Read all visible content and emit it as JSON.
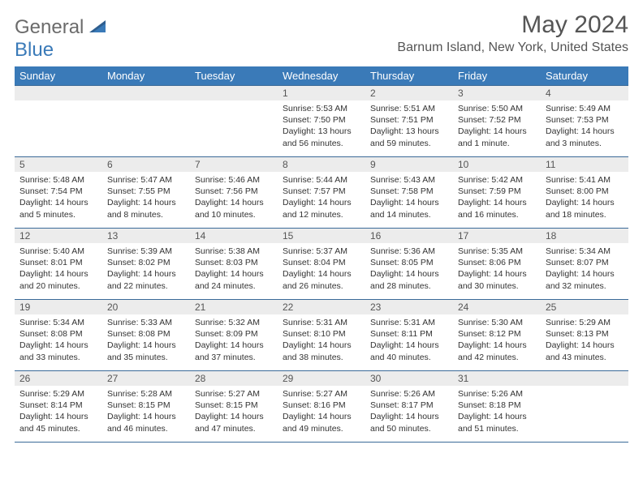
{
  "brand": {
    "name1": "General",
    "name2": "Blue"
  },
  "header": {
    "title": "May 2024",
    "location": "Barnum Island, New York, United States"
  },
  "style": {
    "header_bg": "#3a7ab8",
    "header_text": "#ffffff",
    "daynum_bg": "#ececec",
    "border_color": "#3a6a98",
    "title_color": "#555555",
    "body_text": "#333333",
    "brand_gray": "#6b6b6b",
    "brand_blue": "#3a7ab8",
    "font_family": "Arial",
    "title_fontsize": 30,
    "location_fontsize": 16,
    "th_fontsize": 13,
    "cell_fontsize": 10.5
  },
  "weekdays": [
    "Sunday",
    "Monday",
    "Tuesday",
    "Wednesday",
    "Thursday",
    "Friday",
    "Saturday"
  ],
  "weeks": [
    [
      null,
      null,
      null,
      {
        "n": "1",
        "sr": "Sunrise: 5:53 AM",
        "ss": "Sunset: 7:50 PM",
        "dl": "Daylight: 13 hours and 56 minutes."
      },
      {
        "n": "2",
        "sr": "Sunrise: 5:51 AM",
        "ss": "Sunset: 7:51 PM",
        "dl": "Daylight: 13 hours and 59 minutes."
      },
      {
        "n": "3",
        "sr": "Sunrise: 5:50 AM",
        "ss": "Sunset: 7:52 PM",
        "dl": "Daylight: 14 hours and 1 minute."
      },
      {
        "n": "4",
        "sr": "Sunrise: 5:49 AM",
        "ss": "Sunset: 7:53 PM",
        "dl": "Daylight: 14 hours and 3 minutes."
      }
    ],
    [
      {
        "n": "5",
        "sr": "Sunrise: 5:48 AM",
        "ss": "Sunset: 7:54 PM",
        "dl": "Daylight: 14 hours and 5 minutes."
      },
      {
        "n": "6",
        "sr": "Sunrise: 5:47 AM",
        "ss": "Sunset: 7:55 PM",
        "dl": "Daylight: 14 hours and 8 minutes."
      },
      {
        "n": "7",
        "sr": "Sunrise: 5:46 AM",
        "ss": "Sunset: 7:56 PM",
        "dl": "Daylight: 14 hours and 10 minutes."
      },
      {
        "n": "8",
        "sr": "Sunrise: 5:44 AM",
        "ss": "Sunset: 7:57 PM",
        "dl": "Daylight: 14 hours and 12 minutes."
      },
      {
        "n": "9",
        "sr": "Sunrise: 5:43 AM",
        "ss": "Sunset: 7:58 PM",
        "dl": "Daylight: 14 hours and 14 minutes."
      },
      {
        "n": "10",
        "sr": "Sunrise: 5:42 AM",
        "ss": "Sunset: 7:59 PM",
        "dl": "Daylight: 14 hours and 16 minutes."
      },
      {
        "n": "11",
        "sr": "Sunrise: 5:41 AM",
        "ss": "Sunset: 8:00 PM",
        "dl": "Daylight: 14 hours and 18 minutes."
      }
    ],
    [
      {
        "n": "12",
        "sr": "Sunrise: 5:40 AM",
        "ss": "Sunset: 8:01 PM",
        "dl": "Daylight: 14 hours and 20 minutes."
      },
      {
        "n": "13",
        "sr": "Sunrise: 5:39 AM",
        "ss": "Sunset: 8:02 PM",
        "dl": "Daylight: 14 hours and 22 minutes."
      },
      {
        "n": "14",
        "sr": "Sunrise: 5:38 AM",
        "ss": "Sunset: 8:03 PM",
        "dl": "Daylight: 14 hours and 24 minutes."
      },
      {
        "n": "15",
        "sr": "Sunrise: 5:37 AM",
        "ss": "Sunset: 8:04 PM",
        "dl": "Daylight: 14 hours and 26 minutes."
      },
      {
        "n": "16",
        "sr": "Sunrise: 5:36 AM",
        "ss": "Sunset: 8:05 PM",
        "dl": "Daylight: 14 hours and 28 minutes."
      },
      {
        "n": "17",
        "sr": "Sunrise: 5:35 AM",
        "ss": "Sunset: 8:06 PM",
        "dl": "Daylight: 14 hours and 30 minutes."
      },
      {
        "n": "18",
        "sr": "Sunrise: 5:34 AM",
        "ss": "Sunset: 8:07 PM",
        "dl": "Daylight: 14 hours and 32 minutes."
      }
    ],
    [
      {
        "n": "19",
        "sr": "Sunrise: 5:34 AM",
        "ss": "Sunset: 8:08 PM",
        "dl": "Daylight: 14 hours and 33 minutes."
      },
      {
        "n": "20",
        "sr": "Sunrise: 5:33 AM",
        "ss": "Sunset: 8:08 PM",
        "dl": "Daylight: 14 hours and 35 minutes."
      },
      {
        "n": "21",
        "sr": "Sunrise: 5:32 AM",
        "ss": "Sunset: 8:09 PM",
        "dl": "Daylight: 14 hours and 37 minutes."
      },
      {
        "n": "22",
        "sr": "Sunrise: 5:31 AM",
        "ss": "Sunset: 8:10 PM",
        "dl": "Daylight: 14 hours and 38 minutes."
      },
      {
        "n": "23",
        "sr": "Sunrise: 5:31 AM",
        "ss": "Sunset: 8:11 PM",
        "dl": "Daylight: 14 hours and 40 minutes."
      },
      {
        "n": "24",
        "sr": "Sunrise: 5:30 AM",
        "ss": "Sunset: 8:12 PM",
        "dl": "Daylight: 14 hours and 42 minutes."
      },
      {
        "n": "25",
        "sr": "Sunrise: 5:29 AM",
        "ss": "Sunset: 8:13 PM",
        "dl": "Daylight: 14 hours and 43 minutes."
      }
    ],
    [
      {
        "n": "26",
        "sr": "Sunrise: 5:29 AM",
        "ss": "Sunset: 8:14 PM",
        "dl": "Daylight: 14 hours and 45 minutes."
      },
      {
        "n": "27",
        "sr": "Sunrise: 5:28 AM",
        "ss": "Sunset: 8:15 PM",
        "dl": "Daylight: 14 hours and 46 minutes."
      },
      {
        "n": "28",
        "sr": "Sunrise: 5:27 AM",
        "ss": "Sunset: 8:15 PM",
        "dl": "Daylight: 14 hours and 47 minutes."
      },
      {
        "n": "29",
        "sr": "Sunrise: 5:27 AM",
        "ss": "Sunset: 8:16 PM",
        "dl": "Daylight: 14 hours and 49 minutes."
      },
      {
        "n": "30",
        "sr": "Sunrise: 5:26 AM",
        "ss": "Sunset: 8:17 PM",
        "dl": "Daylight: 14 hours and 50 minutes."
      },
      {
        "n": "31",
        "sr": "Sunrise: 5:26 AM",
        "ss": "Sunset: 8:18 PM",
        "dl": "Daylight: 14 hours and 51 minutes."
      },
      null
    ]
  ]
}
